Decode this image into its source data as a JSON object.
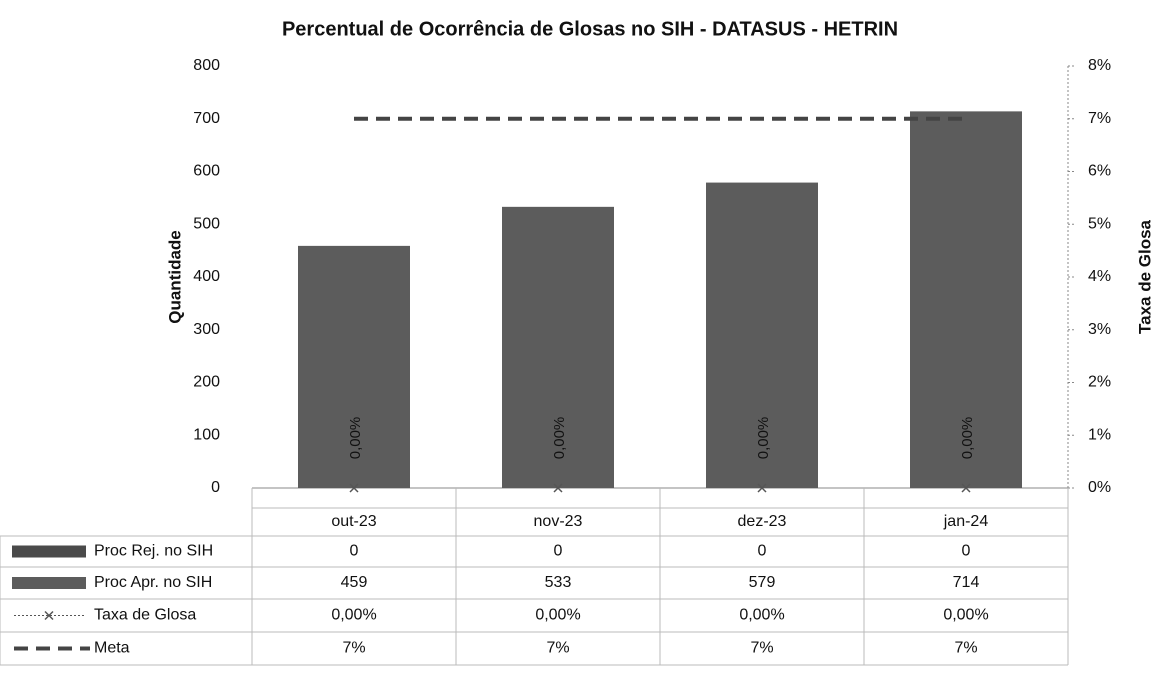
{
  "chart_data": {
    "type": "bar",
    "title": "Percentual de Ocorrência de Glosas no SIH - DATASUS - HETRIN",
    "ylabel": "Quantidade",
    "y2label": "Taxa de Glosa",
    "categories": [
      "out-23",
      "nov-23",
      "dez-23",
      "jan-24"
    ],
    "ylim": [
      0,
      800
    ],
    "yticks": [
      0,
      100,
      200,
      300,
      400,
      500,
      600,
      700,
      800
    ],
    "y2lim": [
      0,
      8
    ],
    "y2ticks": [
      {
        "value": 0,
        "label": "0%"
      },
      {
        "value": 1,
        "label": "1%"
      },
      {
        "value": 2,
        "label": "2%"
      },
      {
        "value": 3,
        "label": "3%"
      },
      {
        "value": 4,
        "label": "4%"
      },
      {
        "value": 5,
        "label": "5%"
      },
      {
        "value": 6,
        "label": "6%"
      },
      {
        "value": 7,
        "label": "7%"
      },
      {
        "value": 8,
        "label": "8%"
      }
    ],
    "series": [
      {
        "name": "Proc Rej. no SIH",
        "type": "bar",
        "color": "#4a4a4a",
        "values": [
          0,
          0,
          0,
          0
        ]
      },
      {
        "name": "Proc Apr. no SIH",
        "type": "bar",
        "color": "#5c5c5c",
        "values": [
          459,
          533,
          579,
          714
        ]
      },
      {
        "name": "Taxa de Glosa",
        "type": "line",
        "axis": "y2",
        "color": "#555555",
        "values": [
          0,
          0,
          0,
          0
        ],
        "value_labels": [
          "0,00%",
          "0,00%",
          "0,00%",
          "0,00%"
        ]
      },
      {
        "name": "Meta",
        "type": "dashed",
        "axis": "y2",
        "color": "#444444",
        "values": [
          7,
          7,
          7,
          7
        ],
        "value_labels": [
          "7%",
          "7%",
          "7%",
          "7%"
        ]
      }
    ]
  }
}
